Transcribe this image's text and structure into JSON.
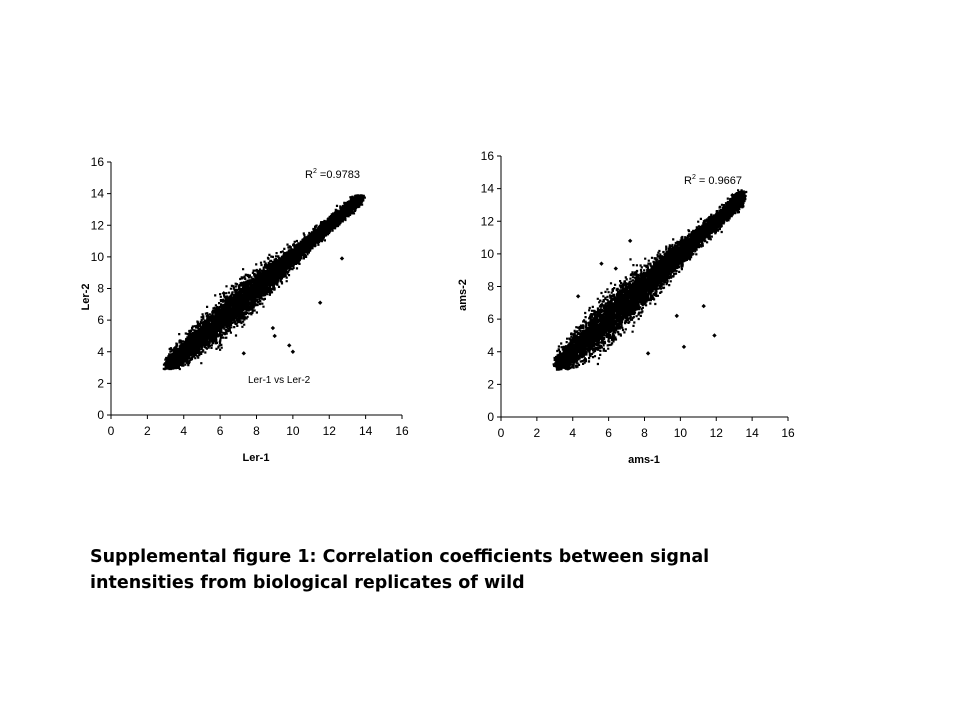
{
  "caption": {
    "line1": "Supplemental figure 1: Correlation coefficients between signal",
    "line2": "intensities from biological replicates of wild"
  },
  "style": {
    "marker_color": "#000000",
    "axis_color": "#000000",
    "background": "#ffffff"
  },
  "chart_data": [
    {
      "type": "scatter",
      "title": "",
      "xlabel": "Ler-1",
      "ylabel": "Ler-2",
      "xlim": [
        0,
        16
      ],
      "ylim": [
        0,
        16
      ],
      "xticks": [
        0,
        2,
        4,
        6,
        8,
        10,
        12,
        14,
        16
      ],
      "yticks": [
        0,
        2,
        4,
        6,
        8,
        10,
        12,
        14,
        16
      ],
      "grid": false,
      "annotations": [
        {
          "label": "R²",
          "base": "R",
          "sup": "2",
          "text": " =0.9783"
        },
        {
          "text": "Ler-1 vs Ler-2"
        }
      ],
      "r_squared": 0.9783,
      "trend": {
        "x_min": 3.0,
        "x_max": 13.8,
        "slope": 1.0,
        "intercept": 0.0
      },
      "outliers": [
        [
          9.8,
          9.6
        ],
        [
          11.5,
          7.1
        ],
        [
          11.8,
          11.7
        ],
        [
          9.0,
          5.0
        ],
        [
          10.0,
          4.0
        ],
        [
          9.8,
          4.4
        ],
        [
          7.3,
          3.9
        ],
        [
          6.2,
          7.7
        ],
        [
          8.9,
          5.5
        ],
        [
          12.7,
          9.9
        ]
      ]
    },
    {
      "type": "scatter",
      "title": "",
      "xlabel": "ams-1",
      "ylabel": "ams-2",
      "xlim": [
        0,
        16
      ],
      "ylim": [
        0,
        16
      ],
      "xticks": [
        0,
        2,
        4,
        6,
        8,
        10,
        12,
        14,
        16
      ],
      "yticks": [
        0,
        2,
        4,
        6,
        8,
        10,
        12,
        14,
        16
      ],
      "grid": false,
      "annotations": [
        {
          "label": "R²",
          "base": "R",
          "sup": "2",
          "text": " = 0.9667"
        }
      ],
      "r_squared": 0.9667,
      "trend": {
        "x_min": 3.0,
        "x_max": 13.5,
        "slope": 1.0,
        "intercept": 0.0
      },
      "outliers": [
        [
          7.2,
          10.8
        ],
        [
          10.2,
          4.3
        ],
        [
          11.9,
          5.0
        ],
        [
          6.4,
          9.1
        ],
        [
          5.6,
          9.4
        ],
        [
          9.8,
          6.2
        ],
        [
          8.2,
          3.9
        ],
        [
          4.3,
          7.4
        ],
        [
          12.9,
          13.6
        ],
        [
          11.3,
          6.8
        ]
      ]
    }
  ]
}
